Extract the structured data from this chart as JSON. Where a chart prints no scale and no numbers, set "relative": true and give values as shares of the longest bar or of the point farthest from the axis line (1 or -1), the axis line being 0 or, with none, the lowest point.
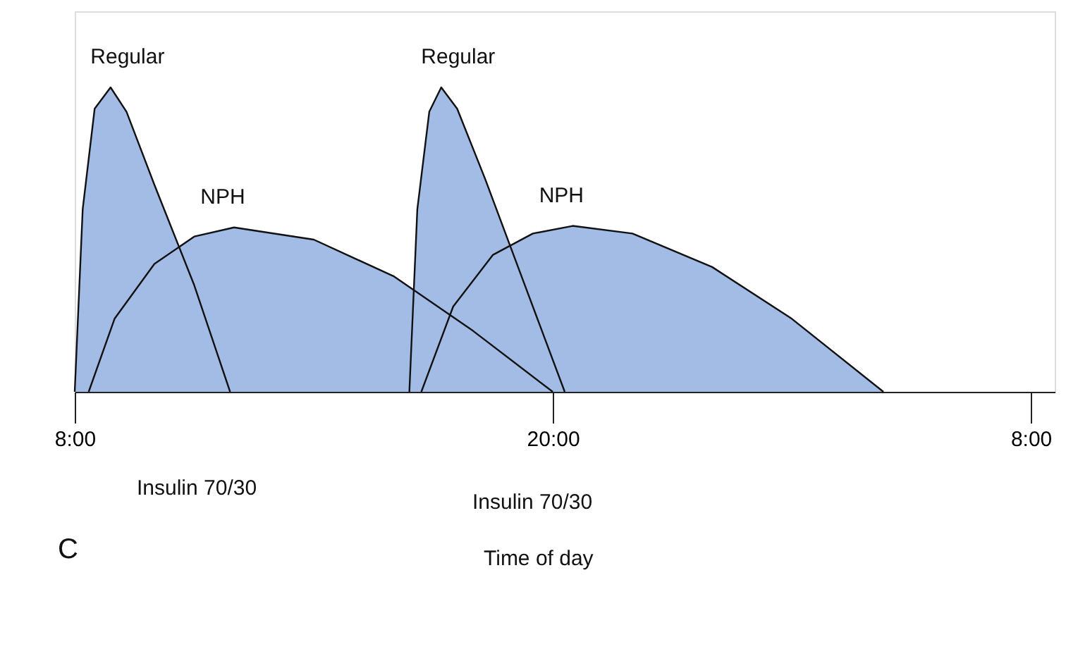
{
  "chart_data": {
    "type": "area",
    "relative": true,
    "xlim": [
      "2000-01-01T08:00",
      "2000-01-02T08:36"
    ],
    "xticks": [
      {
        "value": "2000-01-01T08:00",
        "label": "8:00"
      },
      {
        "value": "2000-01-01T20:00",
        "label": "20:00"
      },
      {
        "value": "2000-01-02T08:00",
        "label": "8:00"
      }
    ],
    "series": [
      {
        "name": "Regular",
        "color": "#a3bce6",
        "x": [
          "2000-01-01T08:00",
          "2000-01-01T08:12",
          "2000-01-01T08:30",
          "2000-01-01T08:54",
          "2000-01-01T09:18",
          "2000-01-01T10:00",
          "2000-01-01T11:00",
          "2000-01-01T11:54"
        ],
        "values": [
          0,
          0.6,
          0.93,
          1.0,
          0.92,
          0.68,
          0.35,
          0
        ]
      },
      {
        "name": "NPH",
        "color": "#a3bce6",
        "x": [
          "2000-01-01T08:21",
          "2000-01-01T09:00",
          "2000-01-01T10:00",
          "2000-01-01T11:00",
          "2000-01-01T12:00",
          "2000-01-01T14:00",
          "2000-01-01T16:00",
          "2000-01-01T18:00",
          "2000-01-01T20:00"
        ],
        "values": [
          0,
          0.24,
          0.42,
          0.51,
          0.54,
          0.5,
          0.38,
          0.2,
          0
        ]
      },
      {
        "name": "Regular",
        "color": "#a3bce6",
        "x": [
          "2000-01-01T16:24",
          "2000-01-01T16:36",
          "2000-01-01T16:54",
          "2000-01-01T17:12",
          "2000-01-01T17:36",
          "2000-01-01T18:18",
          "2000-01-01T19:18",
          "2000-01-01T20:18"
        ],
        "values": [
          0,
          0.6,
          0.92,
          1.0,
          0.93,
          0.7,
          0.35,
          0
        ]
      },
      {
        "name": "NPH",
        "color": "#a3bce6",
        "x": [
          "2000-01-01T16:42",
          "2000-01-01T17:30",
          "2000-01-01T18:30",
          "2000-01-01T19:30",
          "2000-01-01T20:30",
          "2000-01-01T22:00",
          "2000-01-02T00:00",
          "2000-01-02T02:00",
          "2000-01-02T04:18"
        ],
        "values": [
          0,
          0.28,
          0.45,
          0.52,
          0.545,
          0.52,
          0.41,
          0.24,
          0
        ]
      }
    ],
    "annotations": [
      "Insulin 70/30",
      "Insulin 70/30",
      "C",
      "Time of day"
    ]
  }
}
